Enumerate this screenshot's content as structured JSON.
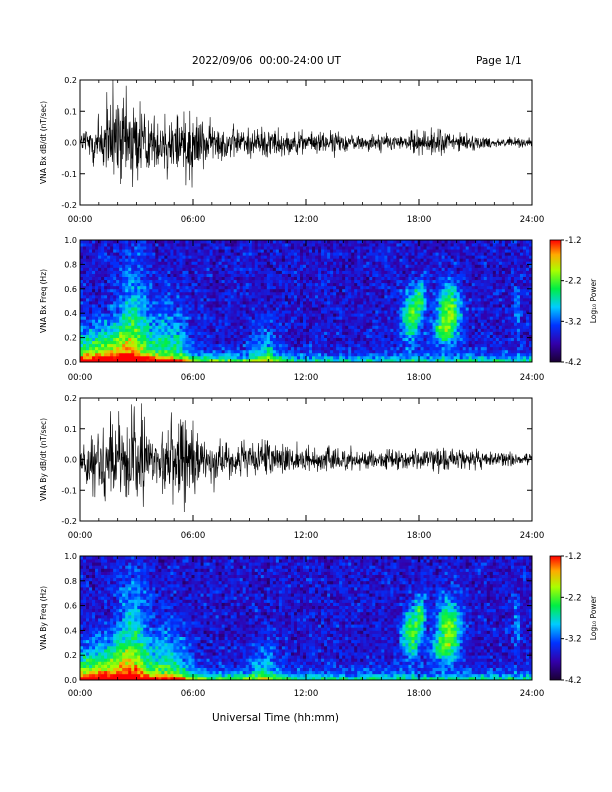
{
  "header": {
    "title": "2022/09/06  00:00-24:00 UT",
    "page": "Page 1/1"
  },
  "x_axis_label": "Universal Time (hh:mm)",
  "chart_data": [
    {
      "type": "line",
      "ylabel": "VNA Bx dB/dt (nT/sec)",
      "x_ticks": [
        "00:00",
        "06:00",
        "12:00",
        "18:00",
        "24:00"
      ],
      "xlim_hours": [
        0,
        24
      ],
      "y_ticks": [
        "-0.2",
        "-0.1",
        "0.0",
        "0.1",
        "0.2"
      ],
      "ylim": [
        -0.2,
        0.2
      ],
      "envelope": {
        "hours": [
          0,
          0.5,
          1,
          1.4,
          1.6,
          2,
          3,
          3.3,
          3.5,
          3.8,
          4,
          4.5,
          4.8,
          5.3,
          5.5,
          5.8,
          6,
          6.3,
          6.5,
          7,
          8,
          9,
          10,
          11,
          12,
          13,
          14,
          15,
          16,
          17,
          18,
          19,
          20,
          21,
          22,
          23,
          24
        ],
        "amplitude": [
          0.04,
          0.1,
          0.14,
          0.18,
          0.2,
          0.2,
          0.2,
          0.2,
          0.15,
          0.1,
          0.1,
          0.13,
          0.17,
          0.14,
          0.2,
          0.18,
          0.16,
          0.12,
          0.1,
          0.08,
          0.07,
          0.06,
          0.07,
          0.05,
          0.04,
          0.05,
          0.04,
          0.03,
          0.04,
          0.03,
          0.05,
          0.06,
          0.04,
          0.03,
          0.02,
          0.02,
          0.02
        ]
      }
    },
    {
      "type": "heatmap",
      "ylabel": "VNA Bx Freq (Hz)",
      "x_ticks": [
        "00:00",
        "06:00",
        "12:00",
        "18:00",
        "24:00"
      ],
      "y_ticks": [
        "0.0",
        "0.2",
        "0.4",
        "0.6",
        "0.8",
        "1.0"
      ],
      "ylim": [
        0,
        1.0
      ],
      "colorbar_label": "Log₁₀ Power",
      "colorbar_ticks": [
        "-1.2",
        "-2.2",
        "-3.2",
        "-4.2"
      ],
      "colorbar_range": [
        -4.2,
        -1.2
      ]
    },
    {
      "type": "line",
      "ylabel": "VNA By dB/dt (nT/sec)",
      "x_ticks": [
        "00:00",
        "06:00",
        "12:00",
        "18:00",
        "24:00"
      ],
      "xlim_hours": [
        0,
        24
      ],
      "y_ticks": [
        "-0.2",
        "-0.1",
        "0.0",
        "0.1",
        "0.2"
      ],
      "ylim": [
        -0.2,
        0.2
      ],
      "envelope": {
        "hours": [
          0,
          0.5,
          1,
          1.3,
          1.6,
          2,
          3,
          3.3,
          3.5,
          3.8,
          4,
          4.5,
          4.8,
          5.3,
          5.6,
          5.9,
          6.2,
          6.5,
          7,
          8,
          9,
          10,
          11,
          12,
          13,
          14,
          15,
          16,
          17,
          18,
          19,
          20,
          21,
          22,
          23,
          24
        ],
        "amplitude": [
          0.05,
          0.12,
          0.16,
          0.2,
          0.2,
          0.2,
          0.2,
          0.2,
          0.14,
          0.1,
          0.11,
          0.14,
          0.18,
          0.16,
          0.2,
          0.17,
          0.12,
          0.1,
          0.09,
          0.07,
          0.07,
          0.08,
          0.06,
          0.05,
          0.05,
          0.05,
          0.04,
          0.04,
          0.04,
          0.04,
          0.05,
          0.04,
          0.04,
          0.03,
          0.03,
          0.03
        ]
      }
    },
    {
      "type": "heatmap",
      "ylabel": "VNA By Freq (Hz)",
      "x_ticks": [
        "00:00",
        "06:00",
        "12:00",
        "18:00",
        "24:00"
      ],
      "y_ticks": [
        "0.0",
        "0.2",
        "0.4",
        "0.6",
        "0.8",
        "1.0"
      ],
      "ylim": [
        0,
        1.0
      ],
      "colorbar_label": "Log₁₀ Power",
      "colorbar_ticks": [
        "-1.2",
        "-2.2",
        "-3.2",
        "-4.2"
      ],
      "colorbar_range": [
        -4.2,
        -1.2
      ]
    }
  ]
}
